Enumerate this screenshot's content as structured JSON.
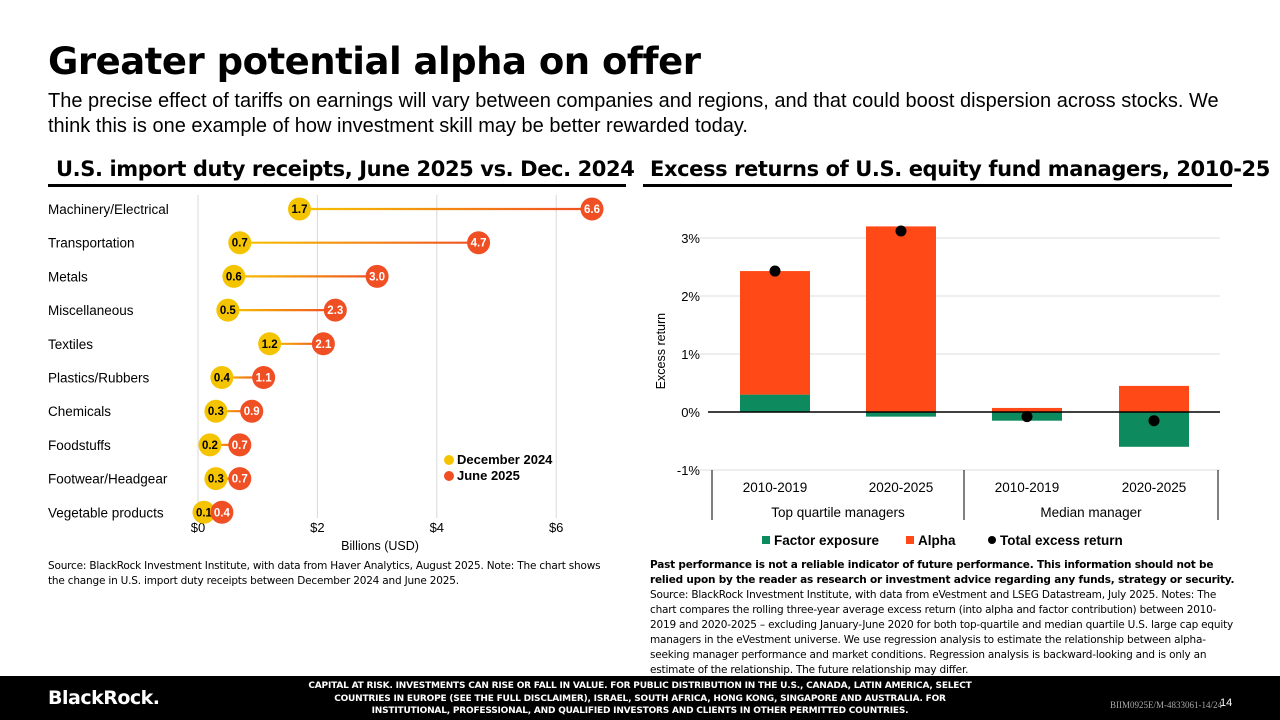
{
  "title": "Greater potential alpha on offer",
  "subtitle": "The precise effect of tariffs on earnings will vary between companies and regions, and that could boost dispersion across stocks. We think this is one example of how investment skill may be better rewarded today.",
  "left": {
    "heading": "U.S. import duty receipts, June 2025 vs. Dec. 2024",
    "source": "Source: BlackRock Investment Institute, with data from Haver Analytics, August 2025. Note: The chart shows the change in U.S. import duty receipts between December 2024 and June 2025."
  },
  "right": {
    "heading": "Excess returns of U.S. equity fund managers, 2010-25",
    "source_bold": "Past performance is not a reliable indicator of future performance. This information should not be relied upon by the reader as research or investment advice regarding any funds, strategy or security.",
    "source_rest": " Source: BlackRock Investment Institute, with data from eVestment and LSEG Datastream, July 2025. Notes: The chart compares the rolling three-year average excess return (into alpha and factor contribution) between 2010-2019 and 2020-2025 – excluding January-June 2020 for both top-quartile and median quartile U.S. large cap equity managers in the eVestment universe. We use regression analysis to estimate the relationship between alpha-seeking manager performance and market conditions. Regression analysis is backward-looking and is only an estimate of the relationship. The future relationship may differ."
  },
  "footer": {
    "logo": "BlackRock.",
    "disclaimer": "CAPITAL AT RISK. INVESTMENTS CAN RISE OR FALL IN VALUE. FOR PUBLIC DISTRIBUTION IN THE U.S., CANADA, LATIN AMERICA, SELECT COUNTRIES IN EUROPE (SEE THE FULL DISCLAIMER), ISRAEL, SOUTH AFRICA, HONG KONG, SINGAPORE AND AUSTRALIA. FOR INSTITUTIONAL, PROFESSIONAL, AND QUALIFIED INVESTORS AND CLIENTS IN OTHER PERMITTED COUNTRIES.",
    "doc_id": "BIIM0925E/M-4833061-14/24",
    "page": "14"
  },
  "chart_data": [
    {
      "type": "dumbbell",
      "title": "U.S. import duty receipts, June 2025 vs. Dec. 2024",
      "xlabel": "Billions (USD)",
      "xlim": [
        0,
        6.5
      ],
      "xticks": [
        0,
        2,
        4,
        6
      ],
      "xtick_labels": [
        "$0",
        "$2",
        "$4",
        "$6"
      ],
      "categories": [
        "Machinery/Electrical",
        "Transportation",
        "Metals",
        "Miscellaneous",
        "Textiles",
        "Plastics/Rubbers",
        "Chemicals",
        "Foodstuffs",
        "Footwear/Headgear",
        "Vegetable products"
      ],
      "series": [
        {
          "name": "December 2024",
          "color": "#F5C400",
          "values": [
            1.7,
            0.7,
            0.6,
            0.5,
            1.2,
            0.4,
            0.3,
            0.2,
            0.3,
            0.1
          ]
        },
        {
          "name": "June 2025",
          "color": "#F04E23",
          "values": [
            6.6,
            4.7,
            3.0,
            2.3,
            2.1,
            1.1,
            0.9,
            0.7,
            0.7,
            0.4
          ]
        }
      ],
      "legend": "bottom-right"
    },
    {
      "type": "stacked-bar",
      "title": "Excess returns of U.S. equity fund managers, 2010-25",
      "ylabel": "Excess return",
      "ylim": [
        -1,
        3.5
      ],
      "yticks": [
        -1,
        0,
        1,
        2,
        3
      ],
      "ytick_labels": [
        "-1%",
        "0%",
        "1%",
        "2%",
        "3%"
      ],
      "categories": [
        "2010-2019",
        "2020-2025",
        "2010-2019",
        "2020-2025"
      ],
      "groups": [
        "Top quartile managers",
        "Median manager"
      ],
      "series": [
        {
          "name": "Factor exposure",
          "color": "#0E8A5F",
          "values": [
            0.3,
            -0.08,
            -0.15,
            -0.6
          ]
        },
        {
          "name": "Alpha",
          "color": "#FF4A17",
          "values": [
            2.13,
            3.2,
            0.07,
            0.45
          ]
        },
        {
          "name": "Total excess return",
          "color": "#000000",
          "values": [
            2.43,
            3.12,
            -0.08,
            -0.15
          ]
        }
      ],
      "legend": "bottom"
    }
  ]
}
